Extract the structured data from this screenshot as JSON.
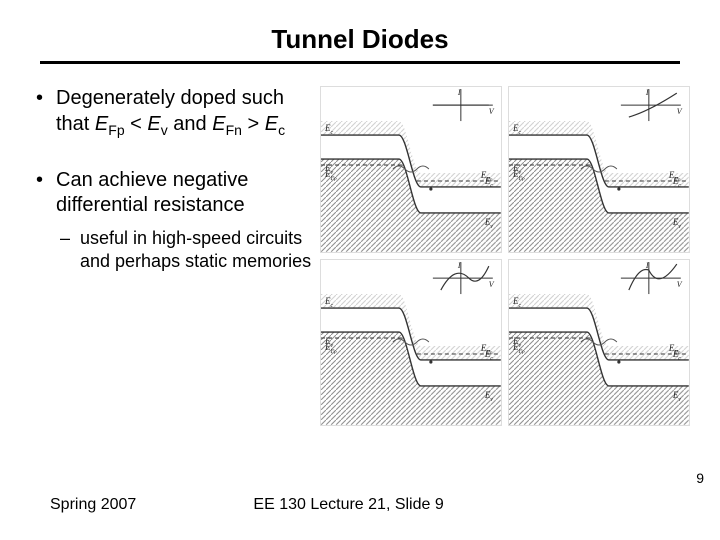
{
  "title": "Tunnel Diodes",
  "bullets": {
    "b1_pre": "Degenerately doped such that ",
    "b1_efp": "E",
    "b1_efp_sub": "Fp",
    "b1_lt": " < ",
    "b1_ev": "E",
    "b1_ev_sub": "v",
    "b1_and": " and ",
    "b1_efn": "E",
    "b1_efn_sub": "Fn",
    "b1_gt": " > ",
    "b1_ec": "E",
    "b1_ec_sub": "c",
    "b2": "Can achieve negative differential resistance",
    "b2_sub": "useful in high-speed circuits and perhaps static memories"
  },
  "footer": {
    "left": "Spring 2007",
    "center": "EE 130 Lecture 21, Slide 9",
    "pagenum": "9"
  },
  "figure": {
    "labels": {
      "Ec": "E_c",
      "Ev": "E_v",
      "EFp": "E_{F_p}",
      "EFn": "E_{F_n}",
      "I": "I",
      "V": "V"
    },
    "colors": {
      "line": "#333333",
      "hatch": "#8a8a8a",
      "hatch_light": "#cfcfcf",
      "wavy": "#555555",
      "bg": "#ffffff"
    },
    "panels": [
      {
        "iv_type": "flat"
      },
      {
        "iv_type": "rise"
      },
      {
        "iv_type": "peak"
      },
      {
        "iv_type": "ndr"
      }
    ]
  }
}
